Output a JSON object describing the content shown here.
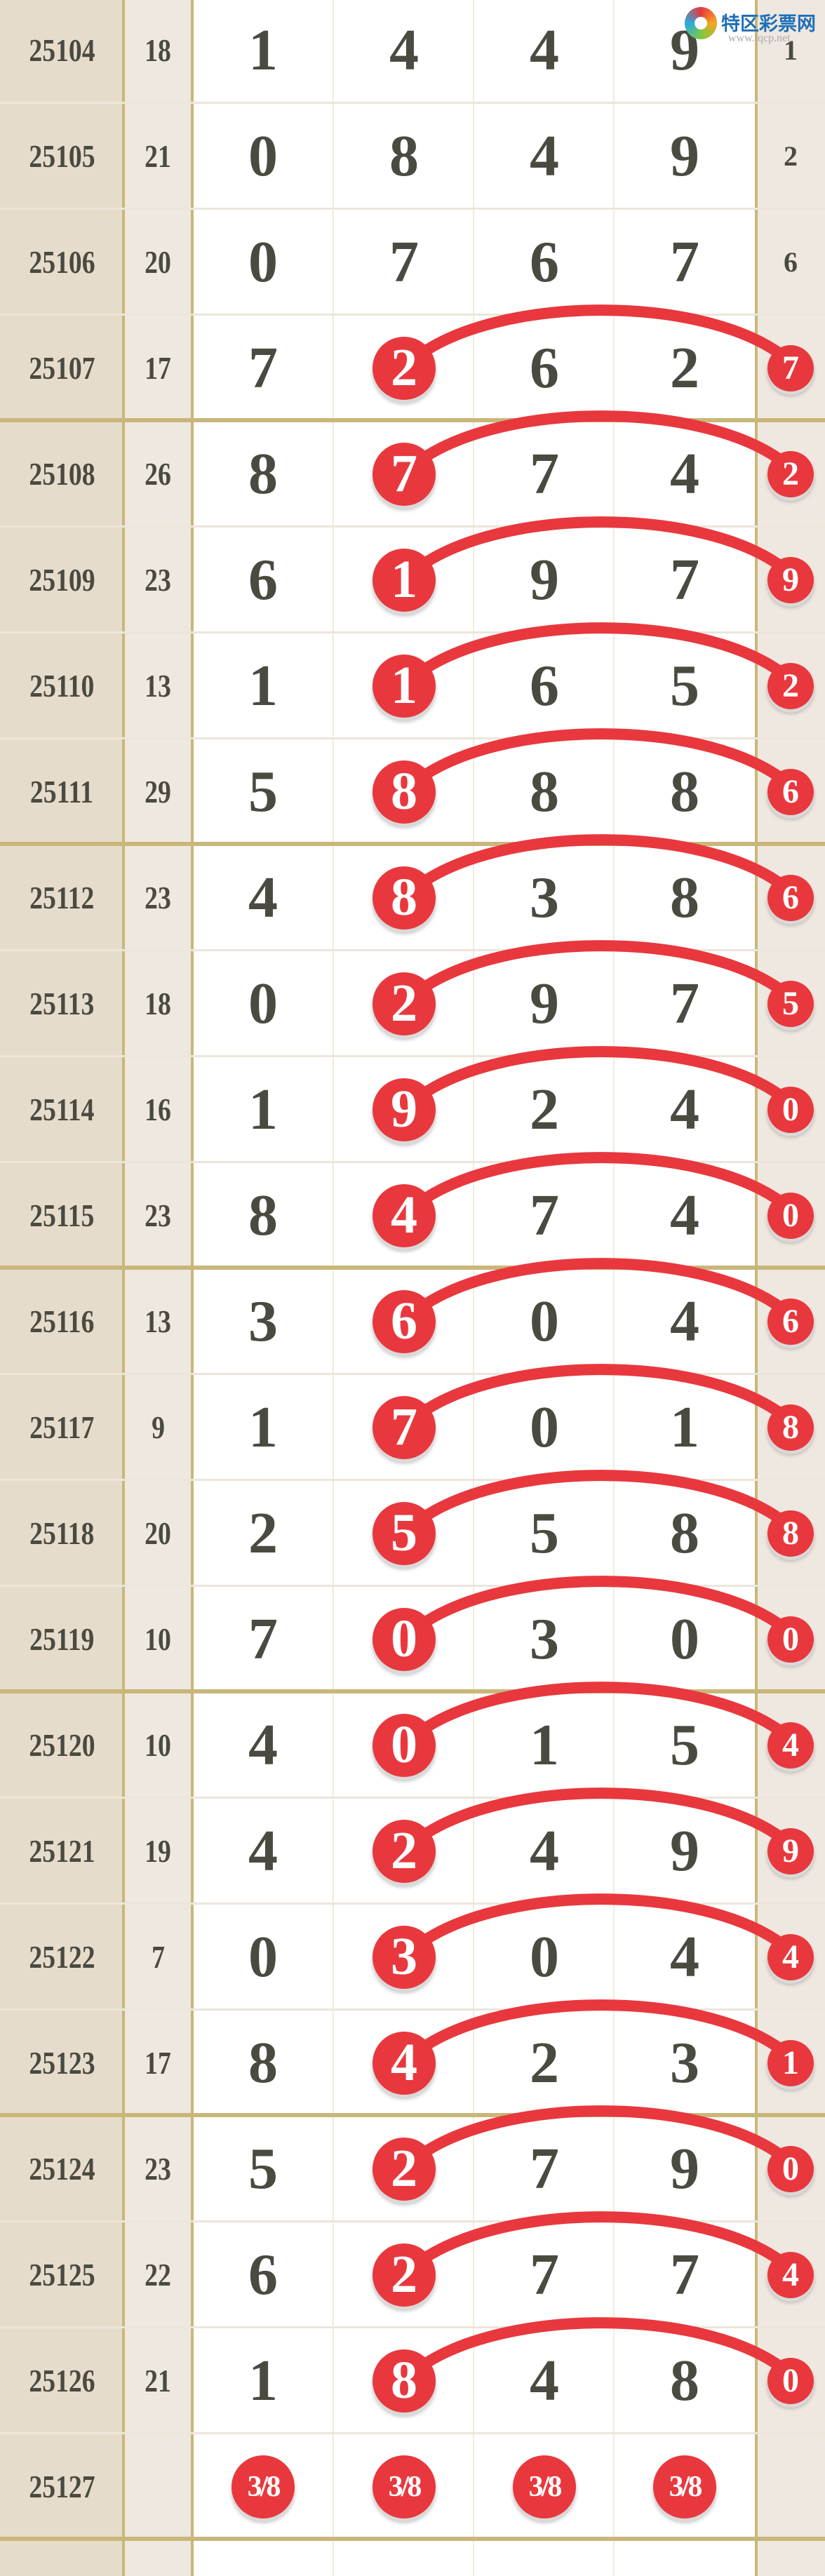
{
  "logo": {
    "name": "特区彩票网",
    "url": "www.tqcp.net"
  },
  "colors": {
    "issue_bg": "#e6dccb",
    "sum_bg": "#efe8e0",
    "ball": "#e8383d",
    "digit": "#4a4a40",
    "grid": "#c9b77a"
  },
  "rows": [
    {
      "issue": "25104",
      "sum": "18",
      "digits": [
        "1",
        "4",
        "4",
        "9"
      ],
      "last": "1",
      "marked": false
    },
    {
      "issue": "25105",
      "sum": "21",
      "digits": [
        "0",
        "8",
        "4",
        "9"
      ],
      "last": "2",
      "marked": false
    },
    {
      "issue": "25106",
      "sum": "20",
      "digits": [
        "0",
        "7",
        "6",
        "7"
      ],
      "last": "6",
      "marked": false
    },
    {
      "issue": "25107",
      "sum": "17",
      "digits": [
        "7",
        "2",
        "6",
        "2"
      ],
      "last": "7",
      "marked": true
    },
    {
      "issue": "25108",
      "sum": "26",
      "digits": [
        "8",
        "7",
        "7",
        "4"
      ],
      "last": "2",
      "marked": true
    },
    {
      "issue": "25109",
      "sum": "23",
      "digits": [
        "6",
        "1",
        "9",
        "7"
      ],
      "last": "9",
      "marked": true
    },
    {
      "issue": "25110",
      "sum": "13",
      "digits": [
        "1",
        "1",
        "6",
        "5"
      ],
      "last": "2",
      "marked": true
    },
    {
      "issue": "25111",
      "sum": "29",
      "digits": [
        "5",
        "8",
        "8",
        "8"
      ],
      "last": "6",
      "marked": true
    },
    {
      "issue": "25112",
      "sum": "23",
      "digits": [
        "4",
        "8",
        "3",
        "8"
      ],
      "last": "6",
      "marked": true
    },
    {
      "issue": "25113",
      "sum": "18",
      "digits": [
        "0",
        "2",
        "9",
        "7"
      ],
      "last": "5",
      "marked": true
    },
    {
      "issue": "25114",
      "sum": "16",
      "digits": [
        "1",
        "9",
        "2",
        "4"
      ],
      "last": "0",
      "marked": true
    },
    {
      "issue": "25115",
      "sum": "23",
      "digits": [
        "8",
        "4",
        "7",
        "4"
      ],
      "last": "0",
      "marked": true
    },
    {
      "issue": "25116",
      "sum": "13",
      "digits": [
        "3",
        "6",
        "0",
        "4"
      ],
      "last": "6",
      "marked": true
    },
    {
      "issue": "25117",
      "sum": "9",
      "digits": [
        "1",
        "7",
        "0",
        "1"
      ],
      "last": "8",
      "marked": true
    },
    {
      "issue": "25118",
      "sum": "20",
      "digits": [
        "2",
        "5",
        "5",
        "8"
      ],
      "last": "8",
      "marked": true
    },
    {
      "issue": "25119",
      "sum": "10",
      "digits": [
        "7",
        "0",
        "3",
        "0"
      ],
      "last": "0",
      "marked": true
    },
    {
      "issue": "25120",
      "sum": "10",
      "digits": [
        "4",
        "0",
        "1",
        "5"
      ],
      "last": "4",
      "marked": true
    },
    {
      "issue": "25121",
      "sum": "19",
      "digits": [
        "4",
        "2",
        "4",
        "9"
      ],
      "last": "9",
      "marked": true
    },
    {
      "issue": "25122",
      "sum": "7",
      "digits": [
        "0",
        "3",
        "0",
        "4"
      ],
      "last": "4",
      "marked": true
    },
    {
      "issue": "25123",
      "sum": "17",
      "digits": [
        "8",
        "4",
        "2",
        "3"
      ],
      "last": "1",
      "marked": true
    },
    {
      "issue": "25124",
      "sum": "23",
      "digits": [
        "5",
        "2",
        "7",
        "9"
      ],
      "last": "0",
      "marked": true
    },
    {
      "issue": "25125",
      "sum": "22",
      "digits": [
        "6",
        "2",
        "7",
        "7"
      ],
      "last": "4",
      "marked": true
    },
    {
      "issue": "25126",
      "sum": "21",
      "digits": [
        "1",
        "8",
        "4",
        "8"
      ],
      "last": "0",
      "marked": true
    }
  ],
  "prediction": {
    "issue": "25127",
    "sum": "",
    "picks": [
      "3/8",
      "3/8",
      "3/8",
      "3/8"
    ],
    "last": ""
  }
}
